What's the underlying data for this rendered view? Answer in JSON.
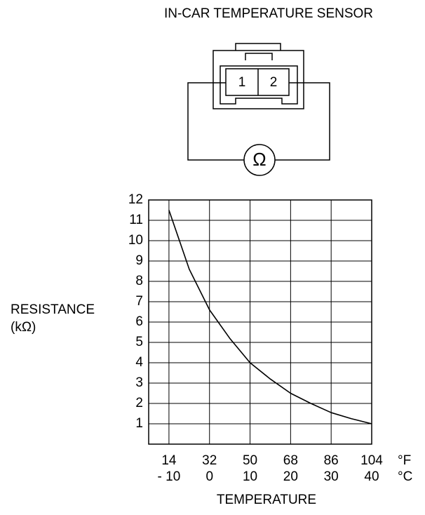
{
  "diagram": {
    "title": "IN-CAR TEMPERATURE SENSOR",
    "pins": [
      "1",
      "2"
    ],
    "meter": "Ω"
  },
  "chart_data": {
    "type": "line",
    "ylabel": [
      "RESISTANCE",
      "(kΩ)"
    ],
    "xlabel": "TEMPERATURE",
    "x_unit": "°C",
    "x2_unit": "°F",
    "x": [
      -10,
      -5,
      0,
      5,
      10,
      15,
      20,
      25,
      30,
      35,
      40
    ],
    "series": [
      {
        "name": "Resistance",
        "color": "#000000",
        "values": [
          11.5,
          8.6,
          6.6,
          5.2,
          4.0,
          3.2,
          2.5,
          2.0,
          1.55,
          1.25,
          1.0
        ]
      }
    ],
    "xlim": [
      -15,
      40
    ],
    "xticks": [
      {
        "value": -10,
        "label": "- 10"
      },
      0,
      10,
      20,
      30,
      40
    ],
    "x2lim": [
      5,
      104
    ],
    "x2ticks": [
      14,
      32,
      50,
      68,
      86,
      104
    ],
    "ylim": [
      0,
      12
    ],
    "yticks": [
      1,
      2,
      3,
      4,
      5,
      6,
      7,
      8,
      9,
      10,
      11,
      12
    ],
    "grid": true
  }
}
